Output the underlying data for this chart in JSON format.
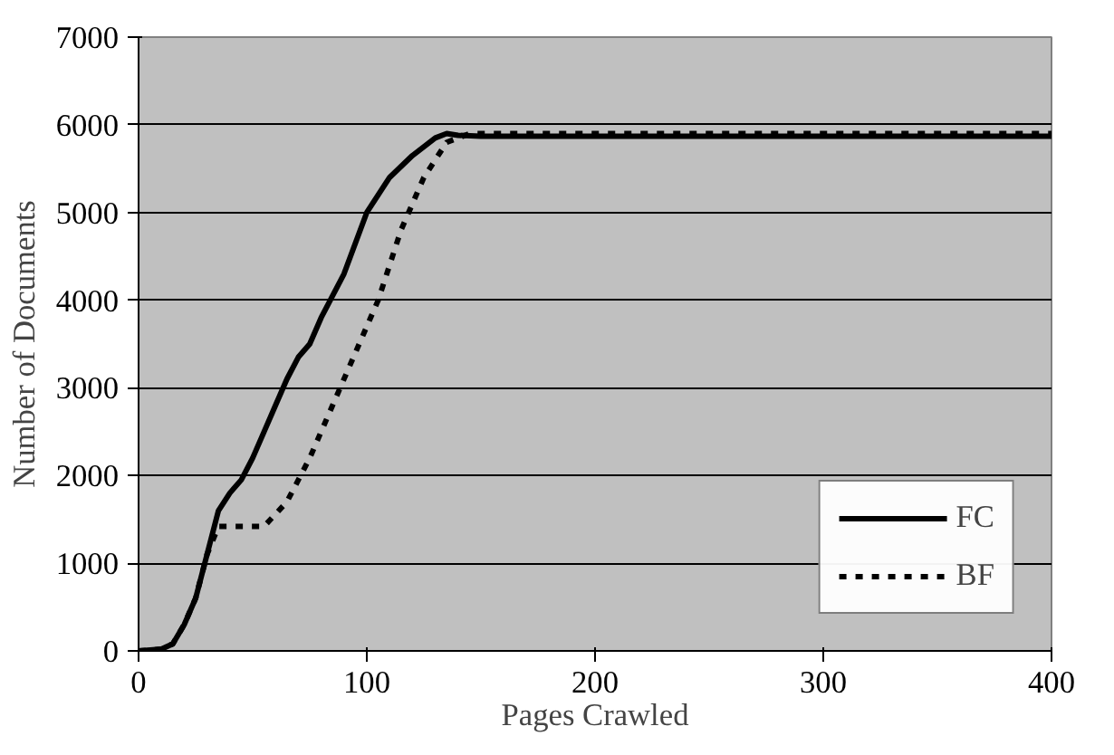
{
  "chart_data": {
    "type": "line",
    "xlabel": "Pages Crawled",
    "ylabel": "Number of Documents",
    "xlim": [
      0,
      400
    ],
    "xticks": [
      0,
      100,
      200,
      300,
      400
    ],
    "ylim": [
      0,
      7000
    ],
    "yticks": [
      0,
      1000,
      2000,
      3000,
      4000,
      5000,
      6000,
      7000
    ],
    "grid": "y",
    "legend": "bottom right",
    "series": [
      {
        "name": "FC",
        "color": "#000000",
        "line_style": "solid",
        "x": [
          0,
          10,
          15,
          20,
          25,
          30,
          35,
          40,
          45,
          50,
          55,
          60,
          65,
          70,
          75,
          80,
          90,
          100,
          110,
          120,
          130,
          135,
          140,
          150,
          400
        ],
        "values": [
          0,
          20,
          80,
          300,
          600,
          1100,
          1600,
          1800,
          1950,
          2200,
          2500,
          2800,
          3100,
          3350,
          3500,
          3800,
          4300,
          5000,
          5400,
          5650,
          5850,
          5900,
          5880,
          5870,
          5870
        ]
      },
      {
        "name": "BF",
        "color": "#000000",
        "line_style": "dashed",
        "x": [
          0,
          10,
          15,
          20,
          25,
          30,
          35,
          40,
          55,
          65,
          75,
          85,
          95,
          105,
          115,
          125,
          135,
          145,
          400
        ],
        "values": [
          0,
          20,
          80,
          300,
          600,
          1100,
          1420,
          1420,
          1420,
          1700,
          2200,
          2800,
          3400,
          4000,
          4800,
          5400,
          5800,
          5900,
          5900
        ]
      }
    ]
  }
}
